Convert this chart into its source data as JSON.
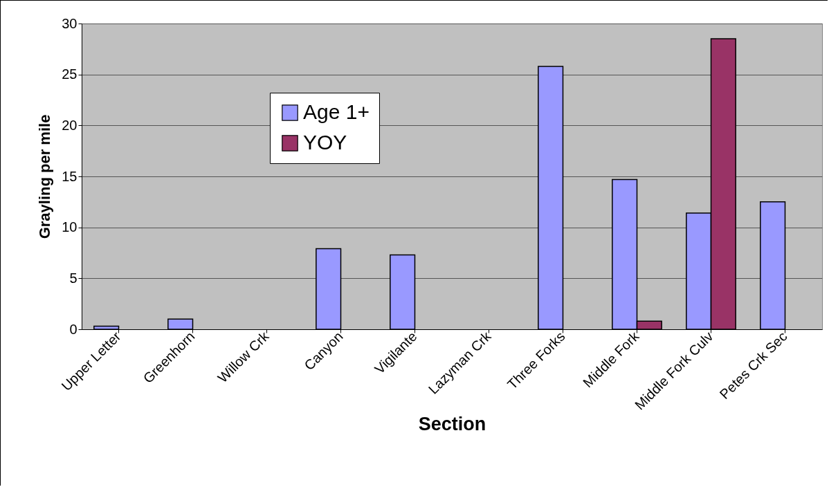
{
  "chart_data": {
    "type": "bar",
    "xlabel": "Section",
    "ylabel": "Grayling per mile",
    "categories": [
      "Upper Letter",
      "Greenhorn",
      "Willow Crk",
      "Canyon",
      "Vigilante",
      "Lazyman Crk",
      "Three Forks",
      "Middle Fork",
      "Middle Fork Culv",
      "Petes Crk Sec"
    ],
    "series": [
      {
        "name": "Age 1+",
        "color": "#9999ff",
        "values": [
          0.3,
          1.0,
          null,
          7.9,
          7.3,
          null,
          25.8,
          14.7,
          11.4,
          12.5
        ]
      },
      {
        "name": "YOY",
        "color": "#993366",
        "values": [
          null,
          null,
          null,
          null,
          null,
          null,
          null,
          0.8,
          28.5,
          null
        ]
      }
    ],
    "ylim": [
      0,
      30
    ],
    "yticks": [
      0,
      5,
      10,
      15,
      20,
      25,
      30
    ],
    "grid": "y",
    "legend": "top left"
  }
}
